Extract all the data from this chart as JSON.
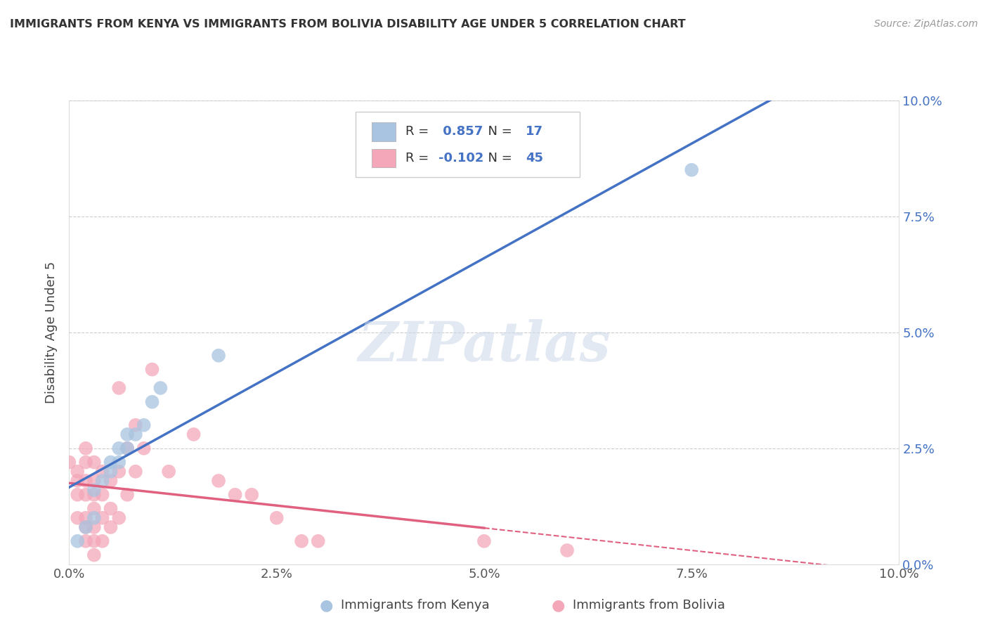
{
  "title": "IMMIGRANTS FROM KENYA VS IMMIGRANTS FROM BOLIVIA DISABILITY AGE UNDER 5 CORRELATION CHART",
  "source": "Source: ZipAtlas.com",
  "ylabel": "Disability Age Under 5",
  "watermark": "ZIPatlas",
  "kenya_R": 0.857,
  "kenya_N": 17,
  "bolivia_R": -0.102,
  "bolivia_N": 45,
  "xlim": [
    0.0,
    0.1
  ],
  "ylim": [
    0.0,
    0.1
  ],
  "xtick_vals": [
    0.0,
    0.025,
    0.05,
    0.075,
    0.1
  ],
  "ytick_vals": [
    0.0,
    0.025,
    0.05,
    0.075,
    0.1
  ],
  "kenya_color": "#a8c4e0",
  "bolivia_color": "#f4a7b9",
  "kenya_line_color": "#4472c4",
  "bolivia_line_color": "#e06080",
  "kenya_scatter": [
    [
      0.001,
      0.005
    ],
    [
      0.002,
      0.008
    ],
    [
      0.003,
      0.01
    ],
    [
      0.003,
      0.016
    ],
    [
      0.004,
      0.018
    ],
    [
      0.005,
      0.02
    ],
    [
      0.005,
      0.022
    ],
    [
      0.006,
      0.022
    ],
    [
      0.006,
      0.025
    ],
    [
      0.007,
      0.025
    ],
    [
      0.007,
      0.028
    ],
    [
      0.008,
      0.028
    ],
    [
      0.009,
      0.03
    ],
    [
      0.01,
      0.035
    ],
    [
      0.011,
      0.038
    ],
    [
      0.018,
      0.045
    ],
    [
      0.075,
      0.085
    ]
  ],
  "bolivia_scatter": [
    [
      0.001,
      0.02
    ],
    [
      0.001,
      0.018
    ],
    [
      0.001,
      0.015
    ],
    [
      0.001,
      0.01
    ],
    [
      0.002,
      0.025
    ],
    [
      0.002,
      0.022
    ],
    [
      0.002,
      0.018
    ],
    [
      0.002,
      0.015
    ],
    [
      0.002,
      0.01
    ],
    [
      0.002,
      0.008
    ],
    [
      0.002,
      0.005
    ],
    [
      0.003,
      0.022
    ],
    [
      0.003,
      0.018
    ],
    [
      0.003,
      0.015
    ],
    [
      0.003,
      0.012
    ],
    [
      0.003,
      0.008
    ],
    [
      0.003,
      0.005
    ],
    [
      0.003,
      0.002
    ],
    [
      0.004,
      0.02
    ],
    [
      0.004,
      0.015
    ],
    [
      0.004,
      0.01
    ],
    [
      0.004,
      0.005
    ],
    [
      0.005,
      0.018
    ],
    [
      0.005,
      0.012
    ],
    [
      0.005,
      0.008
    ],
    [
      0.006,
      0.038
    ],
    [
      0.006,
      0.02
    ],
    [
      0.006,
      0.01
    ],
    [
      0.007,
      0.025
    ],
    [
      0.007,
      0.015
    ],
    [
      0.008,
      0.03
    ],
    [
      0.008,
      0.02
    ],
    [
      0.009,
      0.025
    ],
    [
      0.01,
      0.042
    ],
    [
      0.012,
      0.02
    ],
    [
      0.015,
      0.028
    ],
    [
      0.018,
      0.018
    ],
    [
      0.02,
      0.015
    ],
    [
      0.022,
      0.015
    ],
    [
      0.025,
      0.01
    ],
    [
      0.028,
      0.005
    ],
    [
      0.03,
      0.005
    ],
    [
      0.05,
      0.005
    ],
    [
      0.06,
      0.003
    ],
    [
      0.0,
      0.022
    ]
  ],
  "background_color": "#ffffff",
  "grid_color": "#cccccc"
}
